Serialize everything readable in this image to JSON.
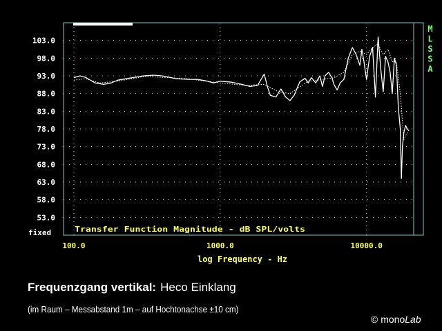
{
  "chart_data": {
    "type": "line",
    "title": "",
    "xlabel": "log Frequency - Hz",
    "ylabel": "",
    "x_scale": "log",
    "xlim": [
      85,
      21000
    ],
    "ylim": [
      48,
      108
    ],
    "grid": true,
    "legend": "none",
    "inner_label": "Transfer Function Magnitude - dB SPL/volts",
    "x_ticks": [
      {
        "value": 100,
        "label": "100.0"
      },
      {
        "value": 1000,
        "label": "1000.0"
      },
      {
        "value": 10000,
        "label": "10000.0"
      }
    ],
    "y_ticks": [
      {
        "value": 103,
        "label": "103.0"
      },
      {
        "value": 98,
        "label": "98.0"
      },
      {
        "value": 93,
        "label": "93.0"
      },
      {
        "value": 88,
        "label": "88.0"
      },
      {
        "value": 83,
        "label": "83.0"
      },
      {
        "value": 78,
        "label": "78.0"
      },
      {
        "value": 73,
        "label": "73.0"
      },
      {
        "value": 68,
        "label": "68.0"
      },
      {
        "value": 63,
        "label": "63.0"
      },
      {
        "value": 58,
        "label": "58.0"
      },
      {
        "value": 53,
        "label": "53.0"
      }
    ],
    "fixed_label": "fixed",
    "side_label": "MLSSA",
    "series": [
      {
        "style": "solid",
        "x": [
          100,
          110,
          120,
          140,
          160,
          180,
          200,
          250,
          300,
          350,
          400,
          500,
          600,
          700,
          800,
          900,
          1000,
          1200,
          1400,
          1600,
          1800,
          2000,
          2100,
          2200,
          2400,
          2600,
          2800,
          3000,
          3200,
          3500,
          3800,
          4000,
          4200,
          4500,
          4800,
          5000,
          5200,
          5500,
          5800,
          6000,
          6300,
          6600,
          7000,
          7500,
          8000,
          8500,
          9000,
          9300,
          9600,
          10000,
          10500,
          11000,
          11500,
          12000,
          12500,
          13000,
          13500,
          14000,
          14500,
          15000,
          15500,
          16000,
          16500,
          17000,
          17300,
          17600,
          18000,
          18500,
          19000,
          19500
        ],
        "y": [
          92.5,
          93.0,
          92.6,
          91.0,
          90.6,
          91.0,
          91.8,
          92.5,
          93.0,
          93.2,
          93.0,
          92.2,
          92.0,
          92.0,
          91.6,
          91.0,
          91.5,
          91.2,
          90.6,
          90.0,
          90.3,
          93.5,
          90.0,
          87.5,
          87.0,
          89.3,
          87.0,
          86.0,
          87.5,
          91.3,
          92.3,
          91.0,
          92.5,
          91.0,
          93.0,
          90.0,
          93.0,
          94.0,
          92.5,
          90.5,
          89.0,
          91.0,
          92.0,
          98.0,
          101.0,
          99.0,
          96.0,
          100.5,
          97.0,
          92.0,
          98.5,
          101.0,
          87.0,
          104.0,
          95.0,
          88.5,
          98.5,
          97.0,
          94.0,
          88.0,
          98.0,
          96.0,
          84.0,
          78.0,
          64.0,
          73.0,
          77.0,
          79.0,
          78.0,
          77.5
        ]
      },
      {
        "style": "dotted",
        "x": [
          100,
          120,
          150,
          200,
          300,
          400,
          600,
          800,
          1000,
          1500,
          2000,
          2500,
          3000,
          4000,
          5000,
          6000,
          7000,
          8000,
          9000,
          10000,
          11000,
          12000,
          13000,
          14000,
          15000,
          16000,
          17000,
          18000,
          19000
        ],
        "y": [
          91.8,
          92.2,
          91.0,
          91.5,
          92.8,
          92.6,
          92.2,
          91.5,
          91.0,
          90.3,
          90.6,
          88.5,
          88.0,
          91.5,
          92.0,
          92.5,
          94.0,
          99.0,
          100.0,
          99.0,
          101.0,
          102.0,
          99.0,
          100.5,
          97.0,
          97.0,
          88.0,
          75.0,
          77.0
        ]
      }
    ]
  },
  "caption": {
    "title_bold": "Frequenzgang vertikal:",
    "title_rest": "Heco Einklang",
    "note": "(im Raum – Messabstand 1m – auf Hochtonachse ±10 cm)",
    "credit_symbol": "©",
    "credit_mono": "mono",
    "credit_lab": "Lab"
  },
  "colors": {
    "background": "#000000",
    "frame": "#88c8c8",
    "grid": "#aacccc",
    "tick_labels": "#ffffff",
    "axis_title": "#ffff66",
    "side_label": "#80ff80",
    "curve": "#ffffff"
  }
}
